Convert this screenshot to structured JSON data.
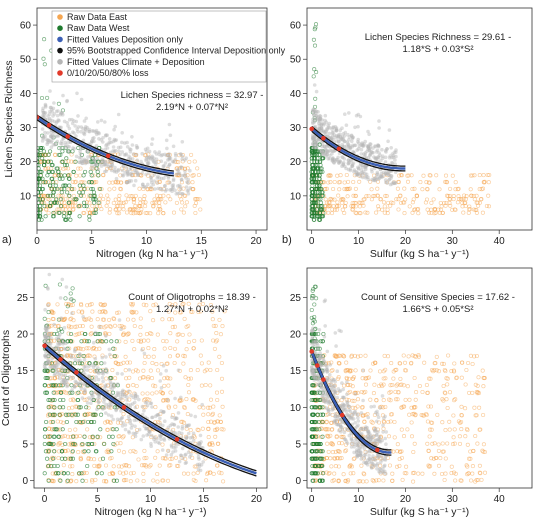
{
  "chart_data": [
    {
      "panel": "a)",
      "type": "scatter",
      "xlabel": "Nitrogen (kg N ha⁻¹ y⁻¹)",
      "ylabel": "Lichen Species Richness",
      "xlim": [
        0,
        21
      ],
      "ylim": [
        0,
        65
      ],
      "xticks": [
        0,
        5,
        10,
        15,
        20
      ],
      "yticks": [
        10,
        20,
        30,
        40,
        50,
        60
      ],
      "grid": false,
      "equation": [
        "Lichen Species richness = 32.97 -",
        "2.19*N + 0.07*N²"
      ],
      "fit": {
        "a": 32.97,
        "b": -2.19,
        "c": 0.07,
        "x_range": [
          0,
          12.5
        ],
        "ci_halfwidth": 0.7
      },
      "loss_points_x": [
        0,
        1.1,
        2.8,
        6.5
      ],
      "cloud": {
        "east": {
          "x": [
            0.3,
            15
          ],
          "y": [
            3,
            24
          ],
          "stripes": [
            5,
            6,
            7,
            8,
            9,
            10,
            12,
            14,
            16,
            18,
            20,
            22
          ]
        },
        "west": {
          "x": [
            0,
            6
          ],
          "y": [
            3,
            32
          ],
          "tail_y": 56
        },
        "climate": {
          "x": [
            0.5,
            14
          ],
          "y_offset": [
            -6,
            6
          ],
          "extra_x_to": 11
        }
      },
      "legend": {
        "position": "top-left",
        "entries": [
          {
            "label": "Raw Data East",
            "color": "#f5a651",
            "marker": "dot"
          },
          {
            "label": "Raw Data West",
            "color": "#1f7a2e",
            "marker": "dot"
          },
          {
            "label": "Fitted Values Deposition only",
            "color": "#3b5fb5",
            "marker": "dot"
          },
          {
            "label": "95% Bootstrapped Confidence Interval Deposition only",
            "color": "#111111",
            "marker": "dot"
          },
          {
            "label": "Fitted Values Climate + Deposition",
            "color": "#b5b5b5",
            "marker": "dot"
          },
          {
            "label": "0/10/20/50/80% loss",
            "color": "#e23a2a",
            "marker": "dot"
          }
        ]
      }
    },
    {
      "panel": "b)",
      "type": "scatter",
      "xlabel": "Sulfur (kg S ha⁻¹ y⁻¹)",
      "ylabel": "",
      "xlim": [
        -1,
        47
      ],
      "ylim": [
        0,
        65
      ],
      "xticks": [
        0,
        10,
        20,
        30,
        40
      ],
      "yticks": [
        10,
        20,
        30,
        40,
        50,
        60
      ],
      "grid": false,
      "equation": [
        "Lichen Species Richness = 29.61 -",
        "1.18*S + 0.03*S²"
      ],
      "fit": {
        "a": 29.61,
        "b": -1.18,
        "c": 0.03,
        "x_range": [
          0,
          20
        ],
        "ci_halfwidth": 0.7
      },
      "loss_points_x": [
        0,
        2.5,
        5.8
      ],
      "cloud": {
        "east": {
          "x": [
            0.5,
            38
          ],
          "y": [
            3,
            22
          ],
          "stripes": [
            5,
            6,
            7,
            8,
            9,
            10,
            12,
            14,
            16
          ]
        },
        "west": {
          "x": [
            0,
            2.5
          ],
          "y": [
            3,
            32
          ],
          "tail_y": 62
        },
        "climate": {
          "x": [
            0.2,
            18
          ],
          "y_offset": [
            -5,
            6
          ],
          "extra_x_to": 8
        }
      }
    },
    {
      "panel": "c)",
      "type": "scatter",
      "xlabel": "Nitrogen (kg N ha⁻¹ y⁻¹)",
      "ylabel": "Count of Oligotrophs",
      "xlim": [
        -1,
        21
      ],
      "ylim": [
        -1,
        29
      ],
      "xticks": [
        0,
        5,
        10,
        15,
        20
      ],
      "yticks": [
        0,
        5,
        10,
        15,
        20,
        25
      ],
      "grid": false,
      "equation": [
        "Count of Oligotrophs = 18.39 -",
        "1.27*N + 0.02*N²"
      ],
      "fit": {
        "a": 18.39,
        "b": -1.27,
        "c": 0.02,
        "x_range": [
          0,
          20
        ],
        "ci_halfwidth": 0.35
      },
      "loss_points_x": [
        0,
        1.5,
        3,
        7.5,
        12.5
      ],
      "cloud": {
        "east": {
          "x": [
            0.3,
            17
          ],
          "y": [
            0,
            24
          ],
          "stripes": [
            0,
            1,
            2,
            3,
            4,
            5,
            6,
            7,
            8,
            9,
            10,
            11,
            12,
            13,
            14,
            15,
            16,
            17,
            18,
            19,
            20,
            21,
            22,
            23,
            24
          ]
        },
        "west": {
          "x": [
            0,
            7
          ],
          "y": [
            0,
            27
          ],
          "tail_y": 27
        },
        "climate": {
          "x": [
            0,
            15
          ],
          "y_offset": [
            -3,
            3
          ],
          "extra_x_to": 0
        }
      }
    },
    {
      "panel": "d)",
      "type": "scatter",
      "xlabel": "Sulfur (kg S ha⁻¹ y⁻¹)",
      "ylabel": "",
      "xlim": [
        -1,
        47
      ],
      "ylim": [
        -1,
        29
      ],
      "xticks": [
        0,
        10,
        20,
        30,
        40
      ],
      "yticks": [
        0,
        5,
        10,
        15,
        20,
        25
      ],
      "grid": false,
      "equation": [
        "Count of Sensitive Species = 17.62 -",
        "1.66*S + 0.05*S²"
      ],
      "fit": {
        "a": 17.62,
        "b": -1.66,
        "c": 0.05,
        "x_range": [
          0,
          17
        ],
        "ci_halfwidth": 0.35
      },
      "loss_points_x": [
        0,
        1.2,
        2.5,
        6.5,
        14
      ],
      "cloud": {
        "east": {
          "x": [
            0.5,
            37
          ],
          "y": [
            0,
            17
          ],
          "stripes": [
            0,
            1,
            2,
            3,
            4,
            5,
            6,
            7,
            8,
            9,
            10,
            11,
            12,
            13,
            14,
            15,
            16,
            17
          ]
        },
        "west": {
          "x": [
            0,
            2.5
          ],
          "y": [
            0,
            27
          ],
          "tail_y": 27
        },
        "climate": {
          "x": [
            0,
            16
          ],
          "y_offset": [
            -3,
            3
          ],
          "extra_x_to": 0
        }
      }
    }
  ]
}
